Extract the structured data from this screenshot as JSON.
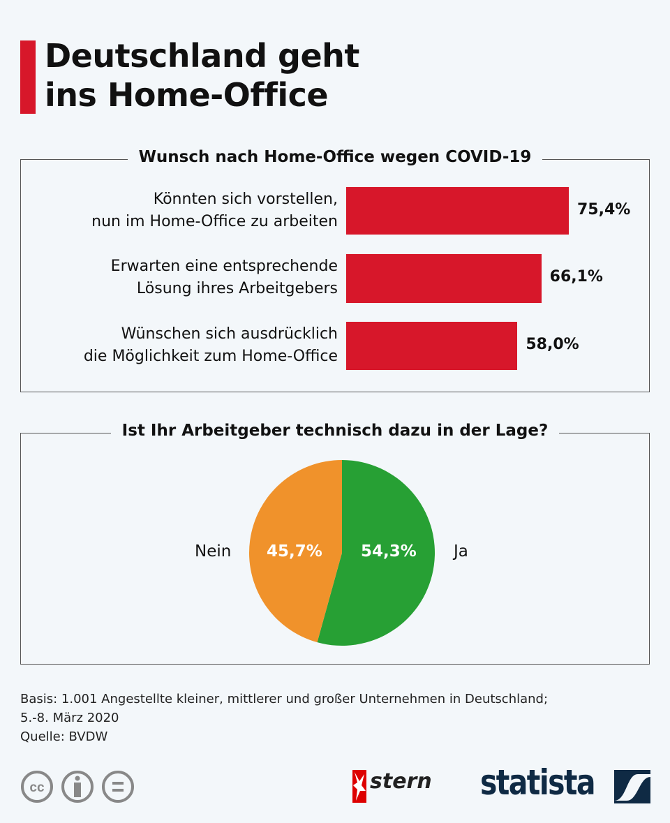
{
  "title_line1": "Deutschland geht",
  "title_line2": "ins Home-Office",
  "chart_data": [
    {
      "type": "bar",
      "orientation": "horizontal",
      "title": "Wunsch nach Home-Office wegen COVID-19",
      "categories": [
        [
          "Könnten sich vorstellen,",
          "nun im Home-Office zu arbeiten"
        ],
        [
          "Erwarten eine entsprechende",
          "Lösung ihres Arbeitgebers"
        ],
        [
          "Wünschen sich ausdrücklich",
          "die Möglichkeit zum Home-Office"
        ]
      ],
      "values": [
        75.4,
        66.1,
        58.0
      ],
      "labels": [
        "75,4%",
        "66,1%",
        "58,0%"
      ],
      "unit": "%",
      "color": "#d7172a"
    },
    {
      "type": "pie",
      "title": "Ist Ihr Arbeitgeber technisch dazu in der Lage?",
      "slices": [
        {
          "name": "Ja",
          "value": 54.3,
          "label": "54,3%",
          "color": "#27a034"
        },
        {
          "name": "Nein",
          "value": 45.7,
          "label": "45,7%",
          "color": "#f0922b"
        }
      ]
    }
  ],
  "footer": {
    "line1": "Basis: 1.001 Angestellte kleiner, mittlerer und großer Unternehmen in Deutschland;",
    "line2": "5.-8. März 2020",
    "line3": "Quelle: BVDW"
  },
  "logos": {
    "stern": "stern",
    "statista": "statista"
  }
}
